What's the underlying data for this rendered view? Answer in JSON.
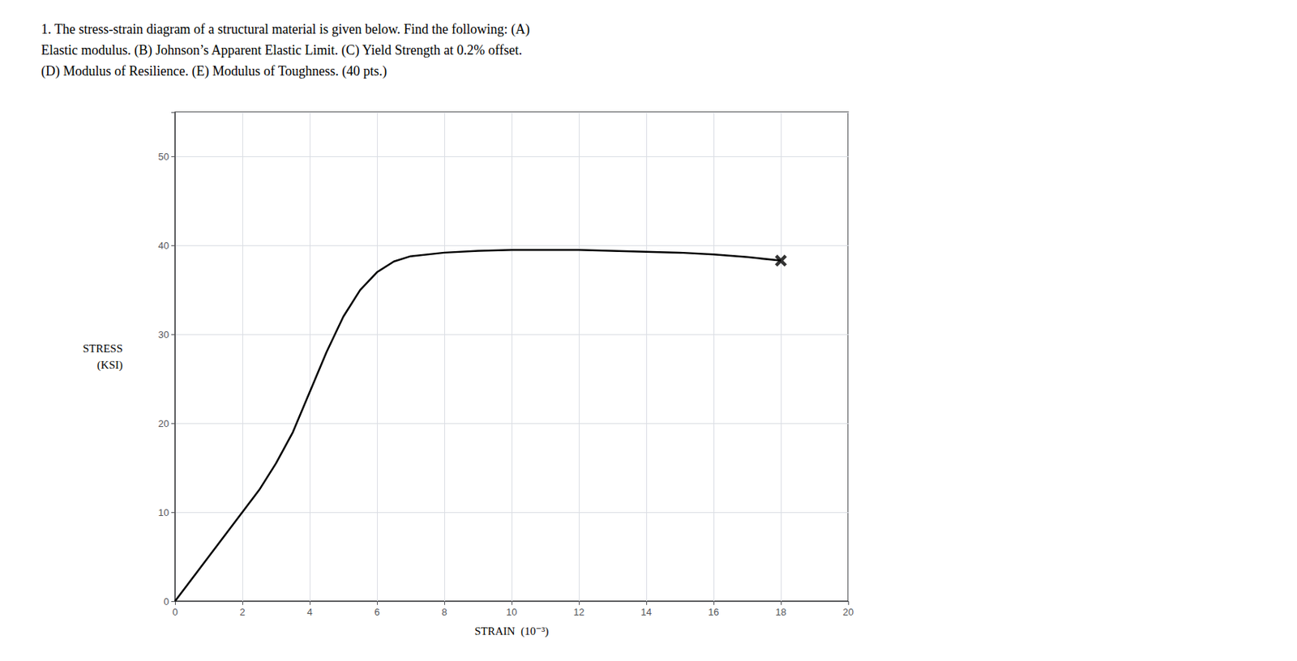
{
  "chart_data": {
    "type": "line",
    "title": [
      "1. The stress-strain diagram of a structural material is given below. Find the following: (A)",
      "Elastic modulus. (B) Johnson’s Apparent Elastic Limit. (C) Yield Strength at 0.2% offset.",
      "(D) Modulus of Resilience. (E) Modulus of Toughness. (40 pts.)"
    ],
    "xlabel": "STRAIN  (10⁻³)",
    "ylabel": [
      "STRESS",
      "(KSI)"
    ],
    "xlim": [
      0,
      20
    ],
    "ylim": [
      0,
      55
    ],
    "xticks": [
      0,
      2,
      4,
      6,
      8,
      10,
      12,
      14,
      16,
      18,
      20
    ],
    "yticks": [
      0,
      10,
      20,
      30,
      40,
      50
    ],
    "grid": true,
    "series": [
      {
        "type": "line",
        "color": "#000000",
        "x": [
          0,
          0.5,
          1.0,
          1.5,
          2.0,
          2.5,
          3.0,
          3.5,
          4.0,
          4.5,
          5.0,
          5.5,
          6.0,
          6.5,
          7.0,
          8.0,
          9.0,
          10.0,
          11.0,
          12.0,
          13.0,
          14.0,
          15.0,
          16.0,
          17.0,
          18.0
        ],
        "values": [
          0,
          2.5,
          5.0,
          7.5,
          10.0,
          12.5,
          15.5,
          19.0,
          23.5,
          28.0,
          32.0,
          35.0,
          37.0,
          38.2,
          38.8,
          39.2,
          39.4,
          39.5,
          39.5,
          39.5,
          39.4,
          39.3,
          39.2,
          39.0,
          38.7,
          38.3
        ]
      },
      {
        "type": "scatter",
        "marker": "x",
        "color": "#000000",
        "x": [
          18
        ],
        "values": [
          38.3
        ]
      }
    ]
  }
}
